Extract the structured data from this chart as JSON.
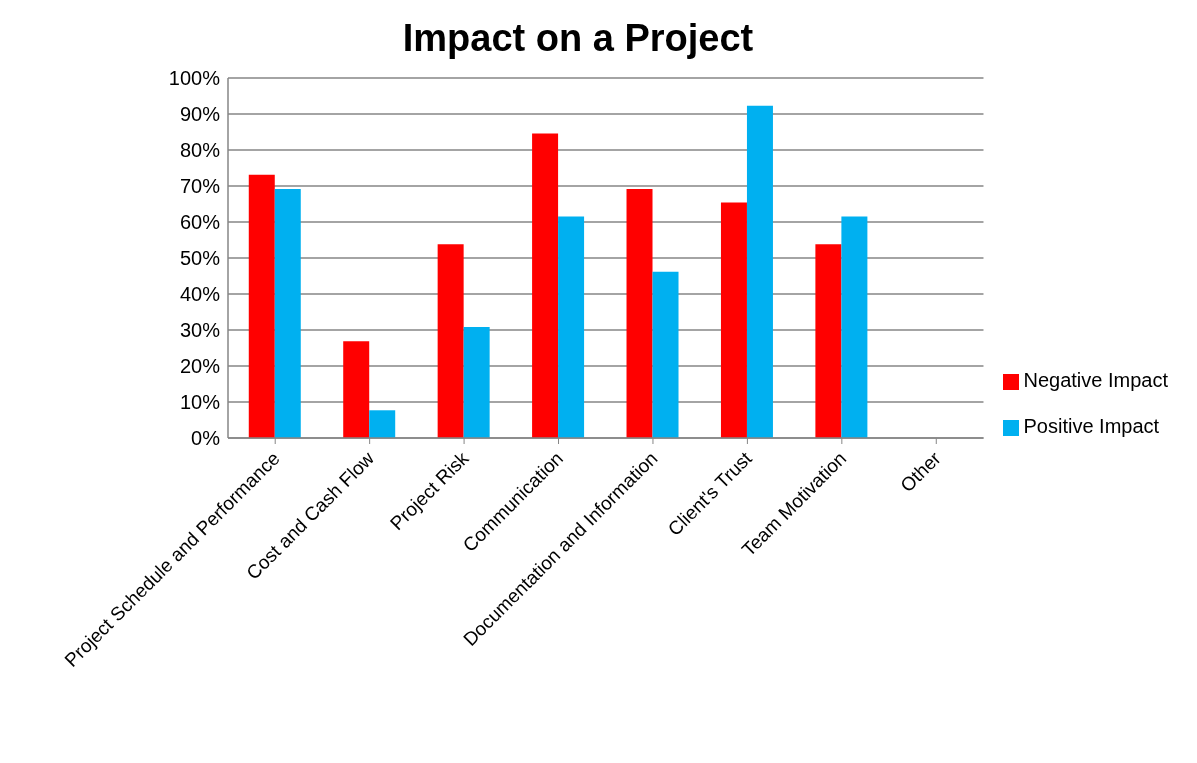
{
  "chart_data": {
    "type": "bar",
    "title": "Impact on a Project",
    "categories": [
      "Project Schedule and Performance",
      "Cost and Cash Flow",
      "Project Risk",
      "Communication",
      "Documentation and Information",
      "Client's Trust",
      "Team Motivation",
      "Other"
    ],
    "series": [
      {
        "name": "Negative Impact",
        "color": "#ff0000",
        "values": [
          73.1,
          26.9,
          53.8,
          84.6,
          69.2,
          65.4,
          53.8,
          null
        ]
      },
      {
        "name": "Positive Impact",
        "color": "#00b0f0",
        "values": [
          69.2,
          7.7,
          30.8,
          61.5,
          46.2,
          92.3,
          61.5,
          null
        ]
      }
    ],
    "ylim": [
      0,
      100
    ],
    "yticks": [
      {
        "value": 0,
        "label": "0%"
      },
      {
        "value": 10,
        "label": "10%"
      },
      {
        "value": 20,
        "label": "20%"
      },
      {
        "value": 30,
        "label": "30%"
      },
      {
        "value": 40,
        "label": "40%"
      },
      {
        "value": 50,
        "label": "50%"
      },
      {
        "value": 60,
        "label": "60%"
      },
      {
        "value": 70,
        "label": "70%"
      },
      {
        "value": 80,
        "label": "80%"
      },
      {
        "value": 90,
        "label": "90%"
      },
      {
        "value": 100,
        "label": "100%"
      }
    ],
    "grid": "y",
    "legend": "right"
  }
}
